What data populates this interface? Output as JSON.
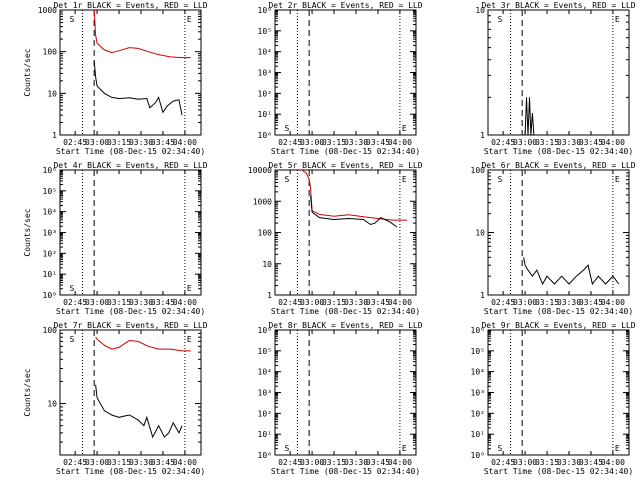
{
  "figure": {
    "background": "#ffffff",
    "axis_color": "#000000"
  },
  "chart_data": [
    {
      "type": "line",
      "title": "Det 1r BLACK = Events, RED = LLD",
      "xlabel": "Start Time (08-Dec-15 02:34:40)",
      "ylabel": "Counts/sec",
      "xticks": [
        "02:45",
        "03:00",
        "03:15",
        "03:30",
        "03:45",
        "04:00"
      ],
      "yscale": "log",
      "ylim": [
        1,
        1000
      ],
      "yticks": [
        "1",
        "10",
        "100",
        "1000"
      ],
      "markers": {
        "S": "S",
        "E": "E"
      },
      "series": [
        {
          "color": "#cc0000",
          "points": [
            [
              "02:58",
              1000
            ],
            [
              "02:59",
              250
            ],
            [
              "03:00",
              160
            ],
            [
              "03:05",
              110
            ],
            [
              "03:10",
              95
            ],
            [
              "03:15",
              105
            ],
            [
              "03:22",
              125
            ],
            [
              "03:28",
              120
            ],
            [
              "03:35",
              100
            ],
            [
              "03:42",
              85
            ],
            [
              "03:50",
              75
            ],
            [
              "03:58",
              72
            ],
            [
              "04:04",
              72
            ]
          ]
        },
        {
          "color": "#000000",
          "points": [
            [
              "02:58",
              60
            ],
            [
              "02:59",
              25
            ],
            [
              "03:00",
              15
            ],
            [
              "03:05",
              10
            ],
            [
              "03:10",
              8
            ],
            [
              "03:15",
              7.5
            ],
            [
              "03:22",
              7.8
            ],
            [
              "03:28",
              7.2
            ],
            [
              "03:34",
              7.5
            ],
            [
              "03:36",
              4.5
            ],
            [
              "03:40",
              6
            ],
            [
              "03:42",
              8
            ],
            [
              "03:45",
              3.5
            ],
            [
              "03:48",
              5
            ],
            [
              "03:52",
              6.5
            ],
            [
              "03:56",
              7
            ],
            [
              "03:58",
              3
            ]
          ]
        }
      ]
    },
    {
      "type": "line",
      "title": "Det 2r BLACK = Events, RED = LLD",
      "xlabel": "Start Time (08-Dec-15 02:34:40)",
      "ylabel": "",
      "xticks": [
        "02:45",
        "03:00",
        "03:15",
        "03:30",
        "03:45",
        "04:00"
      ],
      "yscale": "log",
      "ylim": [
        1,
        1000000
      ],
      "yticks": [
        "10⁰",
        "10¹",
        "10²",
        "10³",
        "10⁴",
        "10⁵",
        "10⁶"
      ],
      "markers": {
        "S": "S",
        "E": "E"
      },
      "series": []
    },
    {
      "type": "line",
      "title": "Det 3r BLACK = Events, RED = LLD",
      "xlabel": "Start Time (08-Dec-15 02:34:40)",
      "ylabel": "",
      "xticks": [
        "02:45",
        "03:00",
        "03:15",
        "03:30",
        "03:45",
        "04:00"
      ],
      "yscale": "log",
      "ylim": [
        1,
        10
      ],
      "yticks": [
        "1",
        "10"
      ],
      "markers": {
        "S": "S",
        "E": "E"
      },
      "series": [
        {
          "color": "#000000",
          "points": [
            [
              "03:00",
              1
            ],
            [
              "03:01",
              2
            ],
            [
              "03:02",
              1
            ],
            [
              "03:03",
              2
            ],
            [
              "03:04",
              1
            ],
            [
              "03:05",
              1.5
            ],
            [
              "03:06",
              1
            ]
          ]
        }
      ]
    },
    {
      "type": "line",
      "title": "Det 4r BLACK = Events, RED = LLD",
      "xlabel": "Start Time (08-Dec-15 02:34:40)",
      "ylabel": "Counts/sec",
      "xticks": [
        "02:45",
        "03:00",
        "03:15",
        "03:30",
        "03:45",
        "04:00"
      ],
      "yscale": "log",
      "ylim": [
        1,
        1000000
      ],
      "yticks": [
        "10⁰",
        "10¹",
        "10²",
        "10³",
        "10⁴",
        "10⁵",
        "10⁶"
      ],
      "markers": {
        "S": "S",
        "E": "E"
      },
      "series": []
    },
    {
      "type": "line",
      "title": "Det 5r BLACK = Events, RED = LLD",
      "xlabel": "Start Time (08-Dec-15 02:34:40)",
      "ylabel": "",
      "xticks": [
        "02:45",
        "03:00",
        "03:15",
        "03:30",
        "03:45",
        "04:00"
      ],
      "yscale": "log",
      "ylim": [
        1,
        10000
      ],
      "yticks": [
        "1",
        "10",
        "100",
        "1000",
        "10000"
      ],
      "markers": {
        "S": "S",
        "E": "E"
      },
      "series": [
        {
          "color": "#cc0000",
          "points": [
            [
              "02:53",
              10000
            ],
            [
              "02:56",
              8000
            ],
            [
              "02:58",
              5000
            ],
            [
              "02:59",
              2500
            ],
            [
              "03:00",
              500
            ],
            [
              "03:05",
              380
            ],
            [
              "03:15",
              330
            ],
            [
              "03:25",
              370
            ],
            [
              "03:35",
              320
            ],
            [
              "03:45",
              280
            ],
            [
              "03:55",
              250
            ],
            [
              "04:05",
              250
            ]
          ]
        },
        {
          "color": "#000000",
          "points": [
            [
              "02:59",
              1500
            ],
            [
              "03:00",
              450
            ],
            [
              "03:05",
              300
            ],
            [
              "03:15",
              260
            ],
            [
              "03:25",
              280
            ],
            [
              "03:35",
              260
            ],
            [
              "03:40",
              180
            ],
            [
              "03:43",
              200
            ],
            [
              "03:47",
              300
            ],
            [
              "03:53",
              220
            ],
            [
              "03:58",
              150
            ]
          ]
        }
      ]
    },
    {
      "type": "line",
      "title": "Det 6r BLACK = Events, RED = LLD",
      "xlabel": "Start Time (08-Dec-15 02:34:40)",
      "ylabel": "",
      "xticks": [
        "02:45",
        "03:00",
        "03:15",
        "03:30",
        "03:45",
        "04:00"
      ],
      "yscale": "log",
      "ylim": [
        1,
        100
      ],
      "yticks": [
        "1",
        "10",
        "100"
      ],
      "markers": {
        "S": "S",
        "E": "E"
      },
      "series": [
        {
          "color": "#000000",
          "points": [
            [
              "02:59",
              4
            ],
            [
              "03:00",
              3
            ],
            [
              "03:02",
              2.5
            ],
            [
              "03:05",
              2
            ],
            [
              "03:08",
              2.5
            ],
            [
              "03:12",
              1.5
            ],
            [
              "03:15",
              2
            ],
            [
              "03:20",
              1.5
            ],
            [
              "03:25",
              2
            ],
            [
              "03:30",
              1.5
            ],
            [
              "03:35",
              2
            ],
            [
              "03:40",
              2.5
            ],
            [
              "03:43",
              3
            ],
            [
              "03:46",
              1.5
            ],
            [
              "03:50",
              2
            ],
            [
              "03:55",
              1.5
            ],
            [
              "04:00",
              2
            ],
            [
              "04:04",
              1.5
            ]
          ]
        }
      ]
    },
    {
      "type": "line",
      "title": "Det 7r BLACK = Events, RED = LLD",
      "xlabel": "Start Time (08-Dec-15 02:34:40)",
      "ylabel": "Counts/sec",
      "xticks": [
        "02:45",
        "03:00",
        "03:15",
        "03:30",
        "03:45",
        "04:00"
      ],
      "yscale": "log",
      "ylim": [
        2,
        100
      ],
      "yticks": [
        "10",
        "100"
      ],
      "markers": {
        "S": "S",
        "E": "E"
      },
      "series": [
        {
          "color": "#cc0000",
          "points": [
            [
              "02:59",
              80
            ],
            [
              "03:00",
              75
            ],
            [
              "03:05",
              62
            ],
            [
              "03:10",
              55
            ],
            [
              "03:15",
              58
            ],
            [
              "03:22",
              72
            ],
            [
              "03:28",
              70
            ],
            [
              "03:35",
              60
            ],
            [
              "03:42",
              55
            ],
            [
              "03:50",
              55
            ],
            [
              "03:58",
              52
            ],
            [
              "04:04",
              52
            ]
          ]
        },
        {
          "color": "#000000",
          "points": [
            [
              "02:59",
              18
            ],
            [
              "03:00",
              12
            ],
            [
              "03:05",
              8
            ],
            [
              "03:10",
              7
            ],
            [
              "03:15",
              6.5
            ],
            [
              "03:22",
              7
            ],
            [
              "03:28",
              6
            ],
            [
              "03:32",
              5
            ],
            [
              "03:34",
              6.5
            ],
            [
              "03:38",
              3.5
            ],
            [
              "03:42",
              5
            ],
            [
              "03:46",
              3.5
            ],
            [
              "03:49",
              4
            ],
            [
              "03:52",
              5.5
            ],
            [
              "03:56",
              4
            ],
            [
              "03:58",
              5
            ]
          ]
        }
      ]
    },
    {
      "type": "line",
      "title": "Det 8r BLACK = Events, RED = LLD",
      "xlabel": "Start Time (08-Dec-15 02:34:40)",
      "ylabel": "",
      "xticks": [
        "02:45",
        "03:00",
        "03:15",
        "03:30",
        "03:45",
        "04:00"
      ],
      "yscale": "log",
      "ylim": [
        1,
        1000000
      ],
      "yticks": [
        "10⁰",
        "10¹",
        "10²",
        "10³",
        "10⁴",
        "10⁵",
        "10⁶"
      ],
      "markers": {
        "S": "S",
        "E": "E"
      },
      "series": []
    },
    {
      "type": "line",
      "title": "Det 9r BLACK = Events, RED = LLD",
      "xlabel": "Start Time (08-Dec-15 02:34:40)",
      "ylabel": "",
      "xticks": [
        "02:45",
        "03:00",
        "03:15",
        "03:30",
        "03:45",
        "04:00"
      ],
      "yscale": "log",
      "ylim": [
        1,
        1000000
      ],
      "yticks": [
        "10⁰",
        "10¹",
        "10²",
        "10³",
        "10⁴",
        "10⁵",
        "10⁶"
      ],
      "markers": {
        "S": "S",
        "E": "E"
      },
      "series": []
    }
  ]
}
